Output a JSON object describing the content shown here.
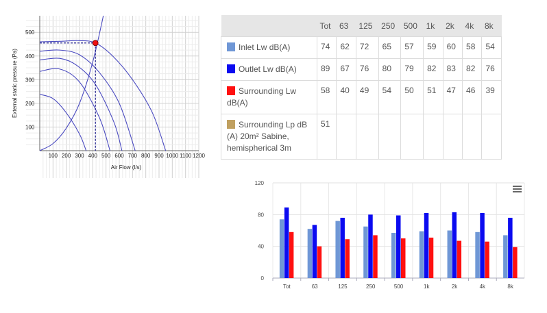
{
  "fan_chart": {
    "ylabel": "External static pressure (Pa)",
    "xlabel": "Air Flow (l/s)",
    "y_ticks": [
      100,
      200,
      300,
      400,
      500
    ],
    "x_tick_labels": [
      "100",
      "200",
      "300",
      "400",
      "500",
      "600",
      "700",
      "800",
      "900",
      "1000",
      "1100",
      "1200"
    ]
  },
  "table": {
    "columns": [
      "Tot",
      "63",
      "125",
      "250",
      "500",
      "1k",
      "2k",
      "4k",
      "8k"
    ],
    "rows": [
      {
        "label": "Inlet Lw dB(A)",
        "color": "#6f97d6",
        "values": [
          "74",
          "62",
          "72",
          "65",
          "57",
          "59",
          "60",
          "58",
          "54"
        ]
      },
      {
        "label": "Outlet Lw dB(A)",
        "color": "#0b0bf0",
        "values": [
          "89",
          "67",
          "76",
          "80",
          "79",
          "82",
          "83",
          "82",
          "76"
        ]
      },
      {
        "label": "Surrounding Lw dB(A)",
        "color": "#ff1010",
        "values": [
          "58",
          "40",
          "49",
          "54",
          "50",
          "51",
          "47",
          "46",
          "39"
        ]
      },
      {
        "label": "Surrounding Lp dB (A) 20m² Sabine, hemispherical 3m",
        "color": "#c0a060",
        "values": [
          "51",
          "",
          "",
          "",
          "",
          "",
          "",
          "",
          ""
        ]
      }
    ]
  },
  "chart_data": [
    {
      "type": "line",
      "xlabel": "Air Flow (l/s)",
      "ylabel": "External static pressure (Pa)",
      "xlim": [
        0,
        1200
      ],
      "ylim": [
        0,
        570
      ],
      "grid": true,
      "series": [
        {
          "values": [
            [
              0,
              460
            ],
            [
              150,
              462
            ],
            [
              300,
              465
            ],
            [
              420,
              455
            ],
            [
              550,
              400
            ],
            [
              700,
              300
            ],
            [
              850,
              160
            ],
            [
              950,
              0
            ]
          ]
        },
        {
          "values": [
            [
              0,
              420
            ],
            [
              150,
              425
            ],
            [
              300,
              405
            ],
            [
              450,
              330
            ],
            [
              600,
              200
            ],
            [
              720,
              0
            ]
          ]
        },
        {
          "values": [
            [
              0,
              383
            ],
            [
              150,
              390
            ],
            [
              280,
              360
            ],
            [
              420,
              280
            ],
            [
              560,
              120
            ],
            [
              620,
              0
            ]
          ]
        },
        {
          "values": [
            [
              0,
              335
            ],
            [
              150,
              345
            ],
            [
              300,
              290
            ],
            [
              450,
              140
            ],
            [
              530,
              0
            ]
          ]
        },
        {
          "values": [
            [
              0,
              238
            ],
            [
              100,
              220
            ],
            [
              200,
              160
            ],
            [
              300,
              70
            ],
            [
              350,
              0
            ]
          ]
        },
        {
          "values": [
            [
              0,
              0
            ],
            [
              100,
              30
            ],
            [
              200,
              95
            ],
            [
              300,
              200
            ],
            [
              400,
              375
            ],
            [
              480,
              570
            ]
          ]
        }
      ],
      "operating_point": {
        "x": 420,
        "y": 455
      },
      "reference_line_y": 455
    },
    {
      "type": "bar",
      "categories": [
        "Tot",
        "63",
        "125",
        "250",
        "500",
        "1k",
        "2k",
        "4k",
        "8k"
      ],
      "ylim": [
        0,
        120
      ],
      "y_ticks": [
        0,
        40,
        80,
        120
      ],
      "series": [
        {
          "name": "Inlet Lw dB(A)",
          "color": "#6f97d6",
          "values": [
            74,
            62,
            72,
            65,
            57,
            59,
            60,
            58,
            54
          ]
        },
        {
          "name": "Outlet Lw dB(A)",
          "color": "#0b0bf0",
          "values": [
            89,
            67,
            76,
            80,
            79,
            82,
            83,
            82,
            76
          ]
        },
        {
          "name": "Surrounding Lw dB(A)",
          "color": "#ff1010",
          "values": [
            58,
            40,
            49,
            54,
            50,
            51,
            47,
            46,
            39
          ]
        }
      ]
    }
  ]
}
